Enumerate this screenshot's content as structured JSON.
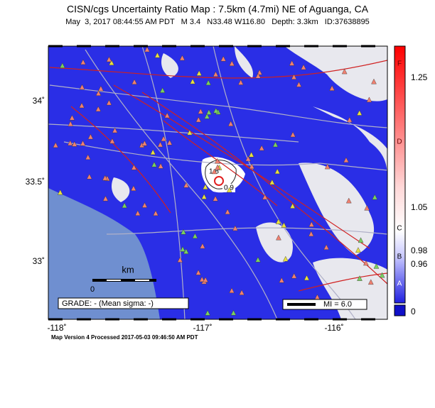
{
  "header": {
    "title": "CISN/cgs Uncertainty Ratio Map : 7.5km (4.7mi) NE of Aguanga, CA",
    "subtitle": "May  3, 2017 08:44:55 AM PDT   M 3.4   N33.48 W116.80   Depth: 3.3km   ID:37638895"
  },
  "map": {
    "lon_labels": [
      "-118˚",
      "-117˚",
      "-116˚"
    ],
    "lat_labels": [
      "34˚",
      "33.5˚",
      "33˚"
    ],
    "scale_unit": "km",
    "scale_zero": "0",
    "grade": "GRADE: - (Mean sigma: -)",
    "mi_label": "MI = 6.0",
    "contour_labels": [
      "1.8",
      "0.9"
    ]
  },
  "colorbar": {
    "values": [
      "1.25",
      "1.05",
      "0.98",
      "0.96",
      "0"
    ],
    "grades": [
      "F",
      "D",
      "C",
      "B",
      "A"
    ]
  },
  "footer": "Map Version 4 Processed 2017-05-03 09:46:50 AM PDT"
}
